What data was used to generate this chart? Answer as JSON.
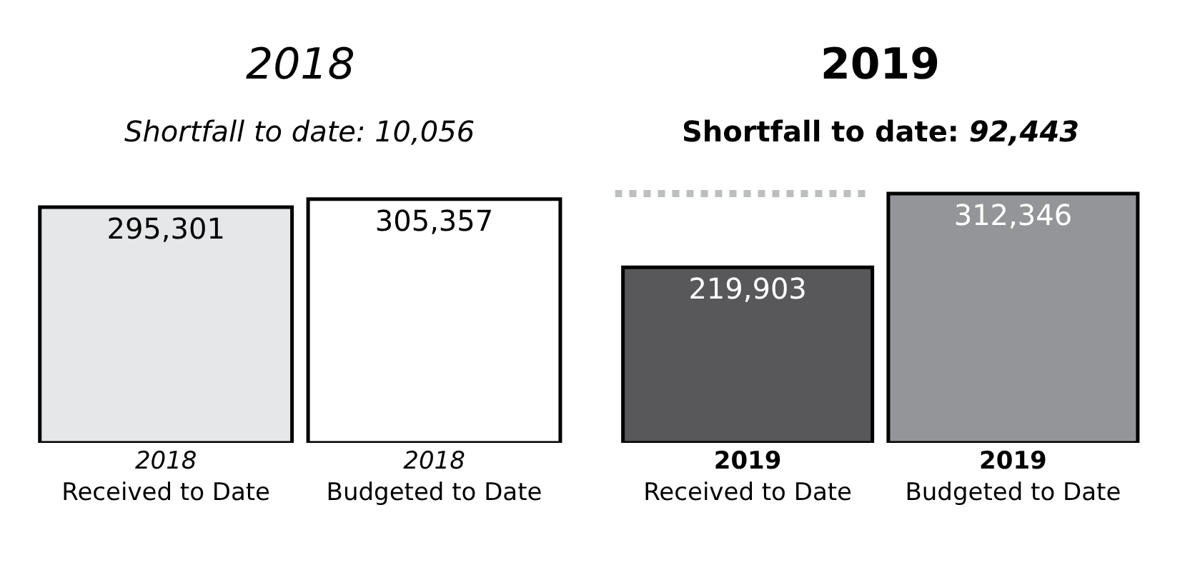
{
  "chart_data": [
    {
      "type": "bar",
      "title": "2018",
      "subtitle": "Shortfall to date: 10,056",
      "categories": [
        "2018\nReceived to Date",
        "2018\nBudgeted to Date"
      ],
      "values": [
        295301,
        305357
      ],
      "value_labels": [
        "295,301",
        "305,357"
      ],
      "colors": [
        "#e6e7e8",
        "#ffffff"
      ],
      "tick_labels": "x"
    },
    {
      "type": "bar",
      "title": "2019",
      "subtitle": "Shortfall to date: 92,443",
      "categories": [
        "2019\nReceived to Date",
        "2019\nBudgeted to Date"
      ],
      "values": [
        219903,
        312346
      ],
      "value_labels": [
        "219,903",
        "312,346"
      ],
      "colors": [
        "#58585a",
        "#939598"
      ],
      "tick_labels": "x",
      "ref_lines": [
        {
          "axis": "y",
          "value": 312346,
          "color": "#bcbec0",
          "line_style": "dotted"
        }
      ]
    }
  ]
}
